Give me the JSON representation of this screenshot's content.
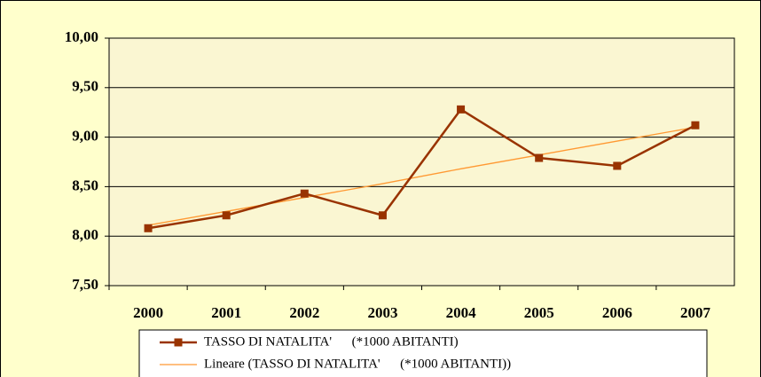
{
  "chart_data": {
    "type": "line",
    "categories": [
      "2000",
      "2001",
      "2002",
      "2003",
      "2004",
      "2005",
      "2006",
      "2007"
    ],
    "series": [
      {
        "name": "TASSO DI NATALITA'      (*1000 ABITANTI)",
        "color": "#993300",
        "marker": "square",
        "values": [
          8.08,
          8.21,
          8.43,
          8.21,
          9.28,
          8.79,
          8.71,
          9.12
        ]
      },
      {
        "name": "Lineare (TASSO DI NATALITA'      (*1000 ABITANTI))",
        "color": "#ff9933",
        "values": [
          8.11,
          8.25,
          8.39,
          8.53,
          8.68,
          8.82,
          8.96,
          9.1
        ]
      }
    ],
    "ylim": [
      7.5,
      10
    ],
    "yticks": [
      {
        "value": 7.5,
        "label": "7,50"
      },
      {
        "value": 8,
        "label": "8,00"
      },
      {
        "value": 8.5,
        "label": "8,50"
      },
      {
        "value": 9,
        "label": "9,00"
      },
      {
        "value": 9.5,
        "label": "9,50"
      },
      {
        "value": 10,
        "label": "10,00"
      }
    ],
    "grid": true,
    "legend": "bottom"
  }
}
